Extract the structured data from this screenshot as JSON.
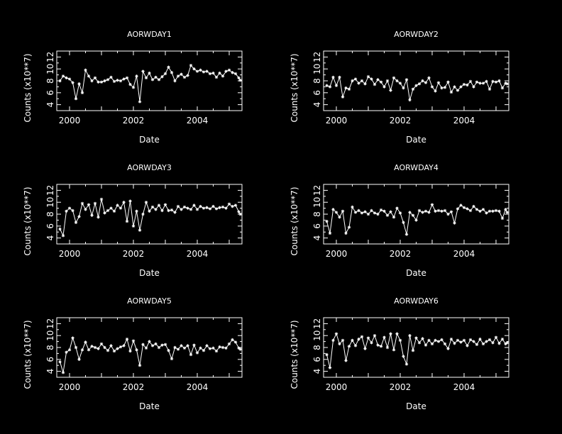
{
  "chart_data": [
    {
      "type": "line",
      "title": "AORWDAY1",
      "xlabel": "Date",
      "ylabel": "Counts (x10**7)",
      "xlim": [
        1999.6,
        2005.4
      ],
      "ylim": [
        3,
        13
      ],
      "xticks": [
        2000,
        2002,
        2004
      ],
      "yticks": [
        4,
        6,
        8,
        10,
        12
      ],
      "series": [
        {
          "color": "#ffffff",
          "marker": "star",
          "x": [
            1999.7,
            1999.8,
            1999.9,
            2000.0,
            2000.1,
            2000.2,
            2000.3,
            2000.4,
            2000.5,
            2000.6,
            2000.7,
            2000.8,
            2000.9,
            2001.0,
            2001.1,
            2001.2,
            2001.3,
            2001.4,
            2001.5,
            2001.6,
            2001.7,
            2001.8,
            2001.9,
            2002.0,
            2002.1,
            2002.2,
            2002.3,
            2002.4,
            2002.5,
            2002.6,
            2002.7,
            2002.8,
            2002.9,
            2003.0,
            2003.1,
            2003.2,
            2003.3,
            2003.4,
            2003.5,
            2003.6,
            2003.7,
            2003.8,
            2003.9,
            2004.0,
            2004.1,
            2004.2,
            2004.3,
            2004.4,
            2004.5,
            2004.6,
            2004.7,
            2004.8,
            2004.9,
            2005.0,
            2005.1,
            2005.2,
            2005.3,
            2005.35
          ],
          "y": [
            8.0,
            8.8,
            8.5,
            8.3,
            7.7,
            5.0,
            7.5,
            6.0,
            9.8,
            8.8,
            8.0,
            8.5,
            7.8,
            7.8,
            8.0,
            8.2,
            8.6,
            7.9,
            8.1,
            8.0,
            8.3,
            8.5,
            7.4,
            6.9,
            8.8,
            4.5,
            9.6,
            8.5,
            9.3,
            8.2,
            8.6,
            8.2,
            8.7,
            9.2,
            10.3,
            9.4,
            8.0,
            8.8,
            9.1,
            8.6,
            8.9,
            10.6,
            10.0,
            9.6,
            9.8,
            9.5,
            9.6,
            9.2,
            9.3,
            8.6,
            9.3,
            8.8,
            9.6,
            9.8,
            9.4,
            9.2,
            8.5,
            8.1
          ]
        }
      ]
    },
    {
      "type": "line",
      "title": "AORWDAY2",
      "xlabel": "Date",
      "ylabel": "Counts (x10**7)",
      "xlim": [
        1999.6,
        2005.4
      ],
      "ylim": [
        3,
        13
      ],
      "xticks": [
        2000,
        2002,
        2004
      ],
      "yticks": [
        4,
        6,
        8,
        10,
        12
      ],
      "series": [
        {
          "color": "#ffffff",
          "marker": "star",
          "x": [
            1999.7,
            1999.8,
            1999.9,
            2000.0,
            2000.1,
            2000.2,
            2000.3,
            2000.4,
            2000.5,
            2000.6,
            2000.7,
            2000.8,
            2000.9,
            2001.0,
            2001.1,
            2001.2,
            2001.3,
            2001.4,
            2001.5,
            2001.6,
            2001.7,
            2001.8,
            2001.9,
            2002.0,
            2002.1,
            2002.2,
            2002.3,
            2002.4,
            2002.5,
            2002.6,
            2002.7,
            2002.8,
            2002.9,
            2003.0,
            2003.1,
            2003.2,
            2003.3,
            2003.4,
            2003.5,
            2003.6,
            2003.7,
            2003.8,
            2003.9,
            2004.0,
            2004.1,
            2004.2,
            2004.3,
            2004.4,
            2004.5,
            2004.6,
            2004.7,
            2004.8,
            2004.9,
            2005.0,
            2005.1,
            2005.2,
            2005.3,
            2005.35
          ],
          "y": [
            7.2,
            7.0,
            8.6,
            7.2,
            8.6,
            5.3,
            6.8,
            6.6,
            8.0,
            8.3,
            7.6,
            8.0,
            7.5,
            8.7,
            8.3,
            7.4,
            8.2,
            7.8,
            7.0,
            8.0,
            6.4,
            8.5,
            8.0,
            7.6,
            6.8,
            8.2,
            4.8,
            6.6,
            7.2,
            7.5,
            8.0,
            7.7,
            8.5,
            7.0,
            6.3,
            7.7,
            6.8,
            6.9,
            7.8,
            6.1,
            7.0,
            6.4,
            7.0,
            7.4,
            7.3,
            7.9,
            7.0,
            7.8,
            7.6,
            7.6,
            7.9,
            6.6,
            7.9,
            7.8,
            8.0,
            6.8,
            7.6,
            7.5
          ]
        }
      ]
    },
    {
      "type": "line",
      "title": "AORWDAY3",
      "xlabel": "Date",
      "ylabel": "Counts (x10**7)",
      "xlim": [
        1999.6,
        2005.4
      ],
      "ylim": [
        3,
        13
      ],
      "xticks": [
        2000,
        2002,
        2004
      ],
      "yticks": [
        4,
        6,
        8,
        10,
        12
      ],
      "series": [
        {
          "color": "#ffffff",
          "marker": "star",
          "x": [
            1999.7,
            1999.8,
            1999.9,
            2000.0,
            2000.1,
            2000.2,
            2000.3,
            2000.4,
            2000.5,
            2000.6,
            2000.7,
            2000.8,
            2000.9,
            2001.0,
            2001.1,
            2001.2,
            2001.3,
            2001.4,
            2001.5,
            2001.6,
            2001.7,
            2001.8,
            2001.9,
            2002.0,
            2002.1,
            2002.2,
            2002.3,
            2002.4,
            2002.5,
            2002.6,
            2002.7,
            2002.8,
            2002.9,
            2003.0,
            2003.1,
            2003.2,
            2003.3,
            2003.4,
            2003.5,
            2003.6,
            2003.7,
            2003.8,
            2003.9,
            2004.0,
            2004.1,
            2004.2,
            2004.3,
            2004.4,
            2004.5,
            2004.6,
            2004.7,
            2004.8,
            2004.9,
            2005.0,
            2005.1,
            2005.2,
            2005.3,
            2005.35
          ],
          "y": [
            5.5,
            4.4,
            8.5,
            9.0,
            8.6,
            6.6,
            7.6,
            9.8,
            8.8,
            9.6,
            7.8,
            9.8,
            7.5,
            10.5,
            8.2,
            8.6,
            9.0,
            8.5,
            9.5,
            9.0,
            10.0,
            6.8,
            10.2,
            6.0,
            8.5,
            5.3,
            8.0,
            10.0,
            8.5,
            9.2,
            8.8,
            9.5,
            8.6,
            9.6,
            8.6,
            8.7,
            8.3,
            9.3,
            8.8,
            9.2,
            9.0,
            8.8,
            9.5,
            8.8,
            9.3,
            9.0,
            9.1,
            8.9,
            9.3,
            8.9,
            9.1,
            9.2,
            9.0,
            9.7,
            9.3,
            9.5,
            8.4,
            8.0
          ]
        }
      ]
    },
    {
      "type": "line",
      "title": "AORWDAY4",
      "xlabel": "Date",
      "ylabel": "Counts (x10**7)",
      "xlim": [
        1999.6,
        2005.4
      ],
      "ylim": [
        3,
        13
      ],
      "xticks": [
        2000,
        2002,
        2004
      ],
      "yticks": [
        4,
        6,
        8,
        10,
        12
      ],
      "series": [
        {
          "color": "#ffffff",
          "marker": "star",
          "x": [
            1999.7,
            1999.8,
            1999.9,
            2000.0,
            2000.1,
            2000.2,
            2000.3,
            2000.4,
            2000.5,
            2000.6,
            2000.7,
            2000.8,
            2000.9,
            2001.0,
            2001.1,
            2001.2,
            2001.3,
            2001.4,
            2001.5,
            2001.6,
            2001.7,
            2001.8,
            2001.9,
            2002.0,
            2002.1,
            2002.2,
            2002.3,
            2002.4,
            2002.5,
            2002.6,
            2002.7,
            2002.8,
            2002.9,
            2003.0,
            2003.1,
            2003.2,
            2003.3,
            2003.4,
            2003.5,
            2003.6,
            2003.7,
            2003.8,
            2003.9,
            2004.0,
            2004.1,
            2004.2,
            2004.3,
            2004.4,
            2004.5,
            2004.6,
            2004.7,
            2004.8,
            2004.9,
            2005.0,
            2005.1,
            2005.2,
            2005.3,
            2005.35
          ],
          "y": [
            6.8,
            4.8,
            8.8,
            8.3,
            7.5,
            8.5,
            4.8,
            5.8,
            9.2,
            8.3,
            8.6,
            8.2,
            8.4,
            8.0,
            8.6,
            8.2,
            8.0,
            8.7,
            8.5,
            7.8,
            8.4,
            7.5,
            9.0,
            8.2,
            6.6,
            4.6,
            8.3,
            7.8,
            7.0,
            8.6,
            8.3,
            8.5,
            8.3,
            9.6,
            8.5,
            8.6,
            8.5,
            8.6,
            8.0,
            8.4,
            6.5,
            8.9,
            9.5,
            9.1,
            8.9,
            8.6,
            9.3,
            8.8,
            8.5,
            8.8,
            8.2,
            8.5,
            8.5,
            8.6,
            8.5,
            7.3,
            8.8,
            8.3
          ]
        }
      ]
    },
    {
      "type": "line",
      "title": "AORWDAY5",
      "xlabel": "Date",
      "ylabel": "Counts (x10**7)",
      "xlim": [
        1999.6,
        2005.4
      ],
      "ylim": [
        3,
        13
      ],
      "xticks": [
        2000,
        2002,
        2004
      ],
      "yticks": [
        4,
        6,
        8,
        10,
        12
      ],
      "series": [
        {
          "color": "#ffffff",
          "marker": "star",
          "x": [
            1999.7,
            1999.8,
            1999.9,
            2000.0,
            2000.1,
            2000.2,
            2000.3,
            2000.4,
            2000.5,
            2000.6,
            2000.7,
            2000.8,
            2000.9,
            2001.0,
            2001.1,
            2001.2,
            2001.3,
            2001.4,
            2001.5,
            2001.6,
            2001.7,
            2001.8,
            2001.9,
            2002.0,
            2002.1,
            2002.2,
            2002.3,
            2002.4,
            2002.5,
            2002.6,
            2002.7,
            2002.8,
            2002.9,
            2003.0,
            2003.1,
            2003.2,
            2003.3,
            2003.4,
            2003.5,
            2003.6,
            2003.7,
            2003.8,
            2003.9,
            2004.0,
            2004.1,
            2004.2,
            2004.3,
            2004.4,
            2004.5,
            2004.6,
            2004.7,
            2004.8,
            2004.9,
            2005.0,
            2005.1,
            2005.2,
            2005.3,
            2005.35
          ],
          "y": [
            5.6,
            3.8,
            7.2,
            7.6,
            9.6,
            8.0,
            6.0,
            7.6,
            8.9,
            7.6,
            8.2,
            8.0,
            7.8,
            8.6,
            8.0,
            7.5,
            8.3,
            7.4,
            7.8,
            8.1,
            8.3,
            9.4,
            7.4,
            9.1,
            7.6,
            5.0,
            8.5,
            7.9,
            9.0,
            8.3,
            8.6,
            8.0,
            8.4,
            8.5,
            7.5,
            6.1,
            8.0,
            7.7,
            8.3,
            7.9,
            8.3,
            6.8,
            8.4,
            7.1,
            7.9,
            7.5,
            8.3,
            7.8,
            7.9,
            7.4,
            8.1,
            8.0,
            7.9,
            8.6,
            9.3,
            8.9,
            7.9,
            7.7
          ]
        }
      ]
    },
    {
      "type": "line",
      "title": "AORWDAY6",
      "xlabel": "Date",
      "ylabel": "Counts (x10**7)",
      "xlim": [
        1999.6,
        2005.4
      ],
      "ylim": [
        3,
        13
      ],
      "xticks": [
        2000,
        2002,
        2004
      ],
      "yticks": [
        4,
        6,
        8,
        10,
        12
      ],
      "series": [
        {
          "color": "#ffffff",
          "marker": "star",
          "x": [
            1999.7,
            1999.8,
            1999.9,
            2000.0,
            2000.1,
            2000.2,
            2000.3,
            2000.4,
            2000.5,
            2000.6,
            2000.7,
            2000.8,
            2000.9,
            2001.0,
            2001.1,
            2001.2,
            2001.3,
            2001.4,
            2001.5,
            2001.6,
            2001.7,
            2001.8,
            2001.9,
            2002.0,
            2002.1,
            2002.2,
            2002.3,
            2002.4,
            2002.5,
            2002.6,
            2002.7,
            2002.8,
            2002.9,
            2003.0,
            2003.1,
            2003.2,
            2003.3,
            2003.4,
            2003.5,
            2003.6,
            2003.7,
            2003.8,
            2003.9,
            2004.0,
            2004.1,
            2004.2,
            2004.3,
            2004.4,
            2004.5,
            2004.6,
            2004.7,
            2004.8,
            2004.9,
            2005.0,
            2005.1,
            2005.2,
            2005.3,
            2005.35
          ],
          "y": [
            6.8,
            4.6,
            9.2,
            10.3,
            8.6,
            9.2,
            5.8,
            8.2,
            9.2,
            8.3,
            9.4,
            9.8,
            7.8,
            9.6,
            8.8,
            10.0,
            8.4,
            8.2,
            9.7,
            8.0,
            10.3,
            7.6,
            10.3,
            9.2,
            6.5,
            5.2,
            10.0,
            7.5,
            9.6,
            8.8,
            9.5,
            8.4,
            9.2,
            8.6,
            9.2,
            9.0,
            9.3,
            8.6,
            7.8,
            9.4,
            8.7,
            9.2,
            8.9,
            9.2,
            8.3,
            9.3,
            9.0,
            8.5,
            9.4,
            8.6,
            9.0,
            9.3,
            8.8,
            9.7,
            8.7,
            9.4,
            8.6,
            8.8
          ]
        }
      ]
    }
  ]
}
